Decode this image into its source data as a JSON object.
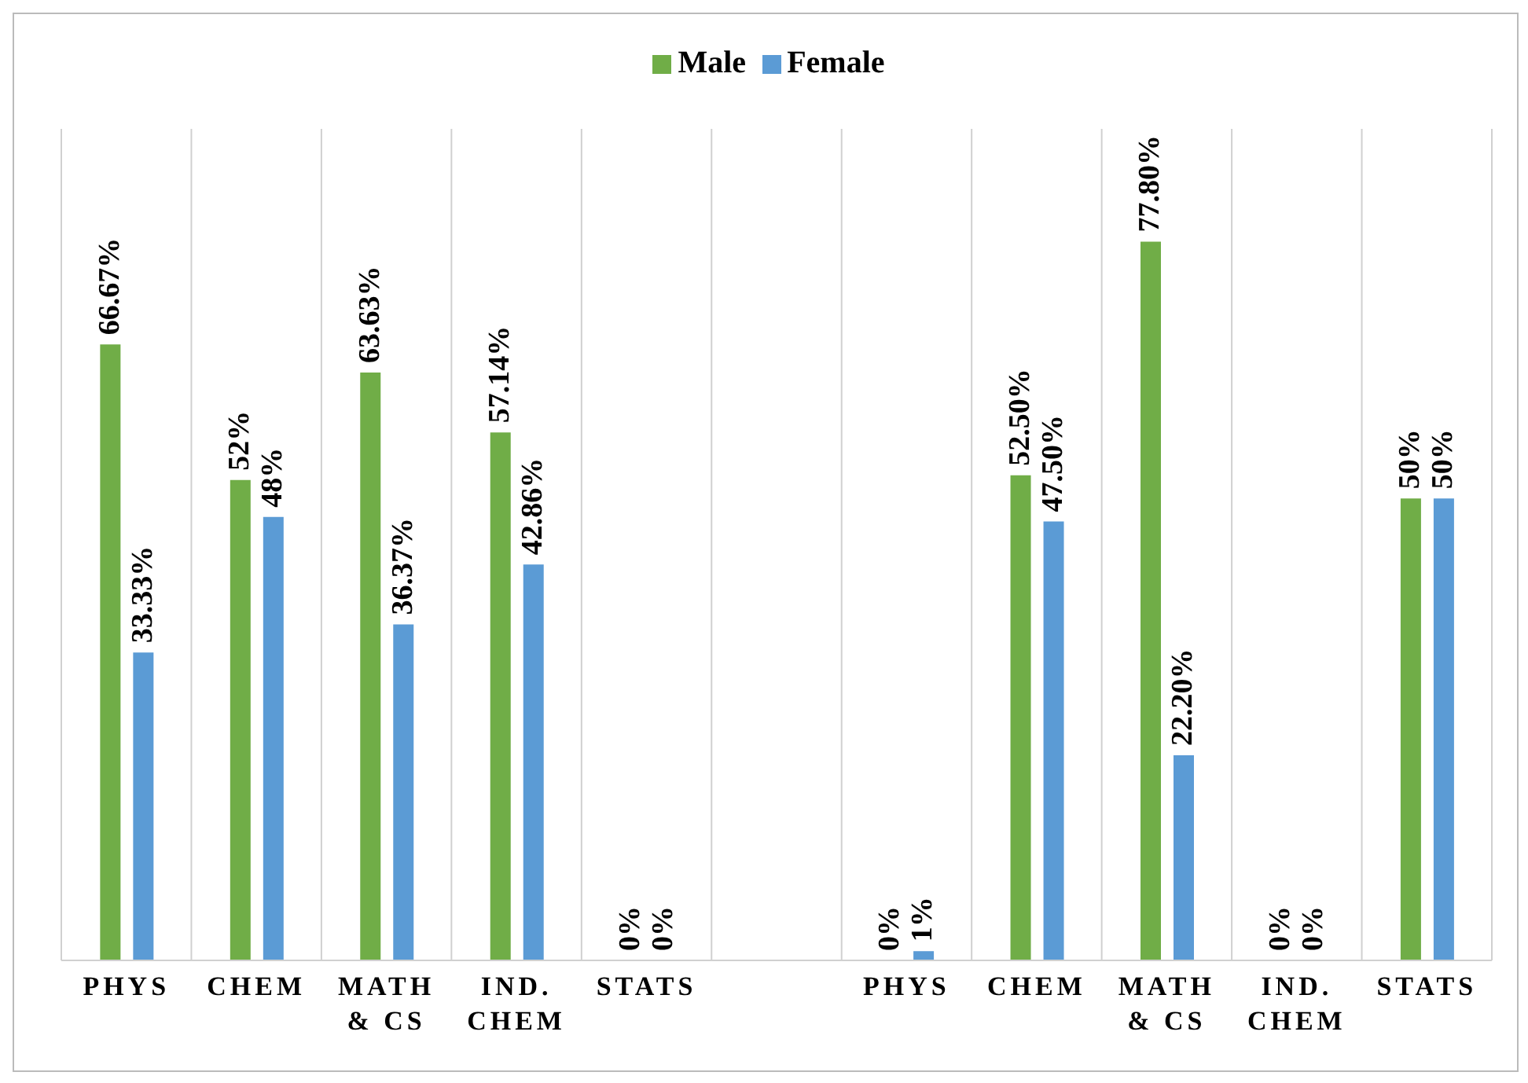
{
  "chart_data": {
    "type": "bar",
    "categories": [
      "PHYS",
      "CHEM",
      "MATH & CS",
      "IND. CHEM",
      "STATS",
      null,
      "PHYS",
      "CHEM",
      "MATH & CS",
      "IND. CHEM",
      "STATS"
    ],
    "series": [
      {
        "name": "Male",
        "color": "#70ad47",
        "values": [
          66.67,
          52,
          63.63,
          57.14,
          0,
          null,
          0,
          52.5,
          77.8,
          0,
          50
        ],
        "value_labels": [
          "66.67%",
          "52%",
          "63.63%",
          "57.14%",
          "0%",
          null,
          "0%",
          "52.50%",
          "77.80%",
          "0%",
          "50%"
        ]
      },
      {
        "name": "Female",
        "color": "#5b9bd5",
        "values": [
          33.33,
          48,
          36.37,
          42.86,
          0,
          null,
          1,
          47.5,
          22.2,
          0,
          50
        ],
        "value_labels": [
          "33.33%",
          "48%",
          "36.37%",
          "42.86%",
          "0%",
          null,
          "1%",
          "47.50%",
          "22.20%",
          "0%",
          "50%"
        ]
      }
    ],
    "ylim": [
      0,
      90
    ],
    "tick_labels": "x",
    "grid": "x",
    "legend": "top"
  }
}
